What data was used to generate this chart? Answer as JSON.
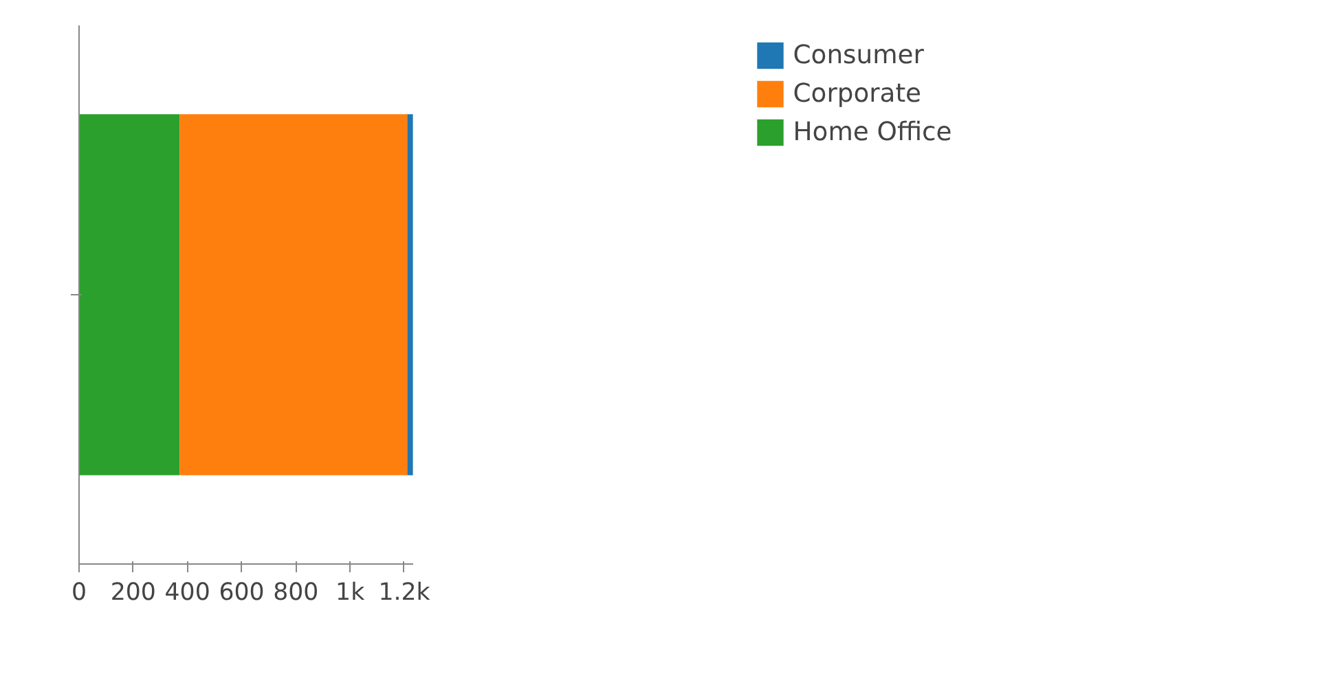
{
  "chart_data": {
    "type": "bar",
    "orientation": "horizontal",
    "stacked": true,
    "categories": [
      null
    ],
    "series": [
      {
        "name": "Home Office",
        "color": "#2ca02c",
        "values": [
          371
        ]
      },
      {
        "name": "Corporate",
        "color": "#ff7f0e",
        "values": [
          840
        ]
      },
      {
        "name": "Consumer",
        "color": "#1f77b4",
        "values": [
          21
        ]
      }
    ],
    "xlim": [
      0,
      1233
    ],
    "xticks": [
      0,
      200,
      400,
      600,
      800,
      {
        "value": 1000,
        "label": "1k"
      },
      {
        "value": 1200,
        "label": "1.2k"
      }
    ],
    "grid": false,
    "legend": "top right"
  }
}
